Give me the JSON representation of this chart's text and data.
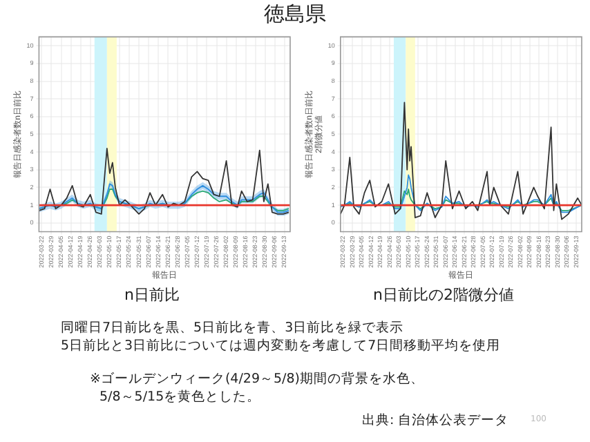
{
  "chart_data": [
    {
      "type": "line",
      "title": "n日前比",
      "xlabel": "報告日",
      "ylabel": "報告日感染者数n日前比",
      "x": [
        "2022-03-20",
        "2022-03-24",
        "2022-03-28",
        "2022-04-01",
        "2022-04-05",
        "2022-04-09",
        "2022-04-13",
        "2022-04-17",
        "2022-04-21",
        "2022-04-26",
        "2022-04-30",
        "2022-05-04",
        "2022-05-08",
        "2022-05-10",
        "2022-05-12",
        "2022-05-14",
        "2022-05-17",
        "2022-05-21",
        "2022-05-25",
        "2022-05-31",
        "2022-06-04",
        "2022-06-08",
        "2022-06-12",
        "2022-06-17",
        "2022-06-21",
        "2022-06-25",
        "2022-06-29",
        "2022-07-03",
        "2022-07-08",
        "2022-07-12",
        "2022-07-16",
        "2022-07-20",
        "2022-07-24",
        "2022-07-28",
        "2022-08-02",
        "2022-08-06",
        "2022-08-10",
        "2022-08-13",
        "2022-08-17",
        "2022-08-21",
        "2022-08-26",
        "2022-08-29",
        "2022-09-01",
        "2022-09-04",
        "2022-09-08",
        "2022-09-12",
        "2022-09-16"
      ],
      "series": [
        {
          "color": "#333333",
          "values": [
            0.7,
            0.8,
            1.9,
            0.8,
            1.0,
            1.4,
            2.1,
            1.0,
            0.9,
            1.6,
            0.6,
            0.5,
            4.2,
            2.8,
            3.4,
            2.0,
            1.0,
            1.3,
            1.0,
            0.5,
            0.8,
            1.7,
            1.0,
            1.6,
            0.9,
            1.1,
            1.0,
            1.2,
            2.6,
            2.9,
            2.5,
            2.4,
            1.6,
            1.5,
            3.5,
            1.0,
            0.9,
            1.8,
            1.2,
            1.3,
            4.1,
            1.2,
            2.2,
            0.6,
            0.5,
            0.5,
            0.6
          ]
        },
        {
          "color": "#2e8fe0",
          "values": [
            0.8,
            0.9,
            1.0,
            0.9,
            1.0,
            1.2,
            1.4,
            1.1,
            1.0,
            1.1,
            0.9,
            0.8,
            1.6,
            2.2,
            2.1,
            1.6,
            1.2,
            1.1,
            1.0,
            0.8,
            0.9,
            1.1,
            1.0,
            1.1,
            1.0,
            1.0,
            1.0,
            1.1,
            1.6,
            1.9,
            2.1,
            1.9,
            1.6,
            1.5,
            1.5,
            1.2,
            1.0,
            1.3,
            1.3,
            1.3,
            1.6,
            1.7,
            1.3,
            0.9,
            0.6,
            0.6,
            0.7
          ],
          "lower": [
            0.6,
            0.7,
            0.8,
            0.7,
            0.8,
            1.0,
            1.2,
            0.9,
            0.8,
            0.9,
            0.7,
            0.6,
            1.4,
            2.0,
            1.9,
            1.4,
            1.0,
            0.9,
            0.8,
            0.6,
            0.7,
            0.9,
            0.8,
            0.9,
            0.8,
            0.8,
            0.8,
            0.9,
            1.4,
            1.7,
            1.9,
            1.7,
            1.4,
            1.3,
            1.3,
            1.0,
            0.8,
            1.1,
            1.1,
            1.1,
            1.4,
            1.5,
            1.1,
            0.7,
            0.4,
            0.4,
            0.5
          ],
          "upper": [
            1.0,
            1.1,
            1.2,
            1.1,
            1.2,
            1.4,
            1.6,
            1.3,
            1.2,
            1.3,
            1.1,
            1.0,
            1.8,
            2.4,
            2.3,
            1.8,
            1.4,
            1.3,
            1.2,
            1.0,
            1.1,
            1.3,
            1.2,
            1.3,
            1.2,
            1.2,
            1.2,
            1.3,
            1.8,
            2.1,
            2.3,
            2.1,
            1.8,
            1.7,
            1.7,
            1.4,
            1.2,
            1.5,
            1.5,
            1.5,
            1.8,
            1.9,
            1.5,
            1.1,
            0.8,
            0.8,
            0.9
          ]
        },
        {
          "color": "#2aa876",
          "values": [
            0.8,
            0.9,
            1.0,
            0.9,
            1.0,
            1.1,
            1.3,
            1.1,
            1.0,
            1.0,
            0.9,
            0.8,
            1.4,
            1.9,
            1.9,
            1.5,
            1.2,
            1.1,
            1.0,
            0.8,
            0.9,
            1.0,
            1.0,
            1.1,
            1.0,
            1.0,
            1.0,
            1.1,
            1.5,
            1.7,
            1.8,
            1.7,
            1.4,
            1.2,
            1.3,
            1.1,
            1.0,
            1.2,
            1.2,
            1.2,
            1.5,
            1.5,
            1.2,
            0.9,
            0.7,
            0.7,
            0.8
          ]
        }
      ],
      "xlim": [
        "2022-03-20",
        "2022-09-17"
      ],
      "xticks": [
        "2022-03-22",
        "2022-03-29",
        "2022-04-05",
        "2022-04-12",
        "2022-04-19",
        "2022-04-26",
        "2022-05-03",
        "2022-05-10",
        "2022-05-17",
        "2022-05-24",
        "2022-05-31",
        "2022-06-07",
        "2022-06-14",
        "2022-06-21",
        "2022-06-28",
        "2022-07-05",
        "2022-07-12",
        "2022-07-19",
        "2022-07-26",
        "2022-08-02",
        "2022-08-09",
        "2022-08-16",
        "2022-08-23",
        "2022-08-30",
        "2022-09-06",
        "2022-09-13"
      ],
      "ylim": [
        -0.5,
        10.5
      ],
      "yticks": [
        0,
        1,
        2,
        3,
        4,
        5,
        6,
        7,
        8,
        9,
        10
      ],
      "grid": true,
      "ref_lines": [
        {
          "axis": "y",
          "value": 1,
          "color": "#e8352b"
        }
      ],
      "bands": [
        {
          "axis": "x",
          "from": "2022-04-29",
          "to": "2022-05-08",
          "color": "#ccf4fb"
        },
        {
          "axis": "x",
          "from": "2022-05-08",
          "to": "2022-05-15",
          "color": "#fdfccb"
        }
      ]
    },
    {
      "type": "line",
      "title": "n日前比の2階微分値",
      "xlabel": "報告日",
      "ylabel": "報告日感染者数n日前比\n2階微分値",
      "x": [
        "2022-03-20",
        "2022-03-23",
        "2022-03-27",
        "2022-03-30",
        "2022-04-03",
        "2022-04-07",
        "2022-04-11",
        "2022-04-15",
        "2022-04-20",
        "2022-04-25",
        "2022-04-30",
        "2022-05-04",
        "2022-05-07",
        "2022-05-09",
        "2022-05-10",
        "2022-05-11",
        "2022-05-12",
        "2022-05-15",
        "2022-05-19",
        "2022-05-24",
        "2022-05-30",
        "2022-06-04",
        "2022-06-07",
        "2022-06-12",
        "2022-06-17",
        "2022-06-22",
        "2022-06-27",
        "2022-07-01",
        "2022-07-08",
        "2022-07-10",
        "2022-07-13",
        "2022-07-18",
        "2022-07-24",
        "2022-07-31",
        "2022-08-04",
        "2022-08-12",
        "2022-08-15",
        "2022-08-20",
        "2022-08-25",
        "2022-08-27",
        "2022-08-29",
        "2022-09-02",
        "2022-09-07",
        "2022-09-14",
        "2022-09-17"
      ],
      "series": [
        {
          "color": "#333333",
          "values": [
            0.5,
            1.0,
            3.7,
            0.9,
            0.5,
            1.7,
            2.4,
            0.9,
            1.2,
            2.2,
            0.5,
            0.8,
            6.8,
            3.0,
            5.3,
            3.5,
            4.3,
            0.3,
            0.4,
            1.7,
            0.3,
            1.0,
            3.5,
            0.8,
            1.8,
            0.8,
            1.2,
            0.7,
            2.9,
            1.0,
            2.0,
            1.0,
            0.5,
            2.9,
            0.5,
            2.0,
            1.5,
            0.8,
            5.4,
            0.7,
            2.2,
            0.2,
            0.5,
            1.4,
            1.0
          ]
        },
        {
          "color": "#2e8fe0",
          "values": [
            0.9,
            1.0,
            1.2,
            1.0,
            0.9,
            1.1,
            1.3,
            1.0,
            1.0,
            1.2,
            0.8,
            0.8,
            1.5,
            2.0,
            2.7,
            2.5,
            2.0,
            1.0,
            0.7,
            1.1,
            0.7,
            0.9,
            1.5,
            1.1,
            1.2,
            0.9,
            1.0,
            0.9,
            1.3,
            1.1,
            1.2,
            1.0,
            0.8,
            1.3,
            0.9,
            1.3,
            1.3,
            1.0,
            1.6,
            1.0,
            1.2,
            0.6,
            0.6,
            0.9,
            1.0
          ]
        },
        {
          "color": "#2aa876",
          "values": [
            1.0,
            1.0,
            1.1,
            1.0,
            0.9,
            1.1,
            1.2,
            1.0,
            1.0,
            1.1,
            0.9,
            0.9,
            1.8,
            1.6,
            1.9,
            1.5,
            1.3,
            1.0,
            0.8,
            1.1,
            0.8,
            0.9,
            1.3,
            1.1,
            1.1,
            1.0,
            1.0,
            1.0,
            1.2,
            1.1,
            1.1,
            1.0,
            0.9,
            1.2,
            1.0,
            1.2,
            1.2,
            1.0,
            1.4,
            1.0,
            1.1,
            0.7,
            0.7,
            0.9,
            1.0
          ]
        }
      ],
      "xlim": [
        "2022-03-20",
        "2022-09-17"
      ],
      "xticks": [
        "2022-03-22",
        "2022-03-29",
        "2022-04-05",
        "2022-04-12",
        "2022-04-19",
        "2022-04-26",
        "2022-05-03",
        "2022-05-10",
        "2022-05-17",
        "2022-05-24",
        "2022-05-31",
        "2022-06-07",
        "2022-06-14",
        "2022-06-21",
        "2022-06-28",
        "2022-07-05",
        "2022-07-12",
        "2022-07-19",
        "2022-07-26",
        "2022-08-02",
        "2022-08-09",
        "2022-08-16",
        "2022-08-23",
        "2022-08-30",
        "2022-09-06",
        "2022-09-13"
      ],
      "ylim": [
        -0.5,
        10.5
      ],
      "yticks": [
        0,
        1,
        2,
        3,
        4,
        5,
        6,
        7,
        8,
        9,
        10
      ],
      "grid": true,
      "ref_lines": [
        {
          "axis": "y",
          "value": 1,
          "color": "#e8352b"
        }
      ],
      "bands": [
        {
          "axis": "x",
          "from": "2022-04-29",
          "to": "2022-05-08",
          "color": "#ccf4fb"
        },
        {
          "axis": "x",
          "from": "2022-05-08",
          "to": "2022-05-15",
          "color": "#fdfccb"
        }
      ]
    },
    {
      "type": "other",
      "title": "徳島県",
      "annotations": [
        "同曜日7日前比を黒、5日前比を青、3日前比を緑で表示",
        "5日前比と3日前比については週内変動を考慮して7日間移動平均を使用",
        "※ゴールデンウィーク(4/29～5/8)期間の背景を水色、",
        "5/8～5/15を黄色とした。",
        "出典: 自治体公表データ",
        "100"
      ]
    }
  ]
}
